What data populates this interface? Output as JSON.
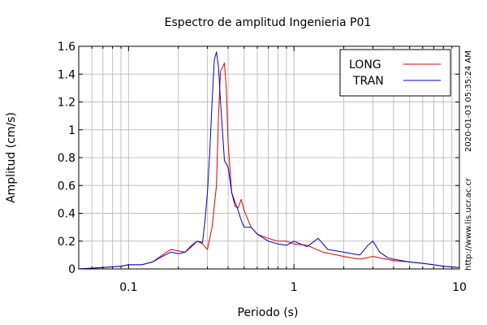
{
  "chart_data": {
    "type": "line",
    "title": "Espectro de amplitud Ingenieria P01",
    "xlabel": "Periodo (s)",
    "ylabel": "Amplitud (cm/s)",
    "x_scale": "log",
    "xlim": [
      0.05,
      10
    ],
    "ylim": [
      0,
      1.6
    ],
    "x_ticks": [
      {
        "value": 0.1,
        "label": "0.1"
      },
      {
        "value": 1,
        "label": "1"
      },
      {
        "value": 10,
        "label": "10"
      }
    ],
    "y_ticks": [
      {
        "value": 0,
        "label": "0"
      },
      {
        "value": 0.2,
        "label": "0.2"
      },
      {
        "value": 0.4,
        "label": "0.4"
      },
      {
        "value": 0.6,
        "label": "0.6"
      },
      {
        "value": 0.8,
        "label": "0.8"
      },
      {
        "value": 1.0,
        "label": "1"
      },
      {
        "value": 1.2,
        "label": "1.2"
      },
      {
        "value": 1.4,
        "label": "1.4"
      },
      {
        "value": 1.6,
        "label": "1.6"
      }
    ],
    "grid": true,
    "legend_position": "top-right",
    "series": [
      {
        "name": "LONG",
        "color": "#e00000",
        "x": [
          0.05,
          0.07,
          0.09,
          0.1,
          0.12,
          0.14,
          0.16,
          0.18,
          0.2,
          0.22,
          0.24,
          0.26,
          0.28,
          0.3,
          0.32,
          0.34,
          0.35,
          0.36,
          0.37,
          0.38,
          0.39,
          0.4,
          0.42,
          0.44,
          0.46,
          0.48,
          0.5,
          0.55,
          0.6,
          0.7,
          0.8,
          0.9,
          1.0,
          1.2,
          1.5,
          2.0,
          2.5,
          3.0,
          4.0,
          5.0,
          6.0,
          7.0,
          8.0,
          10.0
        ],
        "y": [
          0.0,
          0.01,
          0.02,
          0.03,
          0.03,
          0.05,
          0.1,
          0.14,
          0.13,
          0.12,
          0.17,
          0.2,
          0.18,
          0.14,
          0.3,
          0.6,
          1.1,
          1.42,
          1.45,
          1.48,
          1.3,
          0.9,
          0.55,
          0.45,
          0.44,
          0.5,
          0.42,
          0.3,
          0.25,
          0.22,
          0.2,
          0.2,
          0.18,
          0.17,
          0.12,
          0.09,
          0.07,
          0.09,
          0.06,
          0.05,
          0.04,
          0.03,
          0.02,
          0.01
        ]
      },
      {
        "name": "TRAN",
        "color": "#0000c8",
        "x": [
          0.05,
          0.07,
          0.09,
          0.1,
          0.12,
          0.14,
          0.16,
          0.18,
          0.2,
          0.22,
          0.24,
          0.26,
          0.28,
          0.29,
          0.3,
          0.31,
          0.32,
          0.33,
          0.34,
          0.35,
          0.36,
          0.38,
          0.4,
          0.42,
          0.44,
          0.46,
          0.48,
          0.5,
          0.55,
          0.6,
          0.7,
          0.8,
          0.9,
          1.0,
          1.2,
          1.4,
          1.6,
          2.0,
          2.5,
          2.8,
          3.0,
          3.3,
          3.7,
          4.0,
          5.0,
          6.0,
          7.0,
          8.0,
          10.0
        ],
        "y": [
          0.0,
          0.01,
          0.02,
          0.03,
          0.03,
          0.05,
          0.09,
          0.12,
          0.11,
          0.12,
          0.16,
          0.2,
          0.19,
          0.35,
          0.55,
          0.85,
          1.2,
          1.5,
          1.56,
          1.45,
          1.2,
          0.78,
          0.73,
          0.55,
          0.48,
          0.42,
          0.35,
          0.3,
          0.3,
          0.25,
          0.2,
          0.18,
          0.17,
          0.2,
          0.16,
          0.22,
          0.14,
          0.12,
          0.1,
          0.17,
          0.2,
          0.12,
          0.08,
          0.07,
          0.05,
          0.04,
          0.03,
          0.02,
          0.01
        ]
      }
    ]
  },
  "side_text": {
    "timestamp": "2020-01-03 05:35:24 AM",
    "url": "http://www.lis.ucr.ac.cr"
  }
}
